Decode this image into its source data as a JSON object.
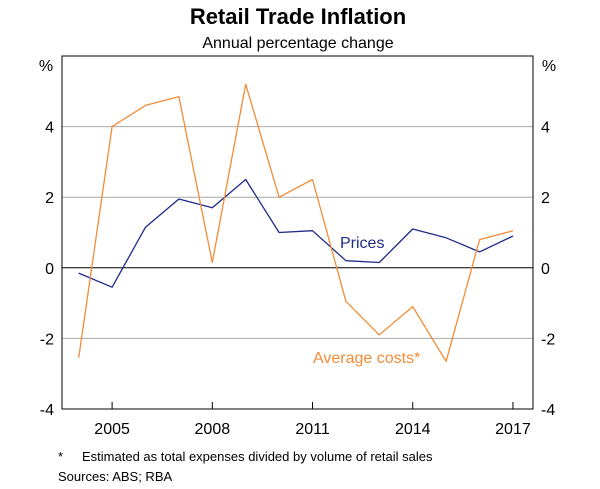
{
  "chart_data": {
    "type": "line",
    "title": "Retail Trade Inflation",
    "subtitle": "Annual percentage change",
    "ylabel_left": "%",
    "ylabel_right": "%",
    "ylim": [
      -4,
      6
    ],
    "yticks": [
      -4,
      -2,
      0,
      2,
      4
    ],
    "xlim": [
      2003.5,
      2017.6
    ],
    "xticks": [
      2005,
      2008,
      2011,
      2014,
      2017
    ],
    "grid": true,
    "x": [
      2004,
      2005,
      2006,
      2007,
      2008,
      2009,
      2010,
      2011,
      2012,
      2013,
      2014,
      2015,
      2016,
      2017
    ],
    "series": [
      {
        "name": "Prices",
        "color": "#1f2a8a",
        "values": [
          -0.15,
          -0.55,
          1.15,
          1.95,
          1.7,
          2.5,
          1.0,
          1.05,
          0.2,
          0.15,
          1.1,
          0.85,
          0.45,
          0.9
        ]
      },
      {
        "name": "Average costs*",
        "color": "#f28c38",
        "values": [
          -2.55,
          4.0,
          4.6,
          4.85,
          0.15,
          5.2,
          2.0,
          2.5,
          -0.95,
          -1.9,
          -1.1,
          -2.65,
          0.8,
          1.05
        ]
      }
    ]
  },
  "footnotes": {
    "note_mark": "*",
    "note_text": "Estimated as total expenses divided by volume of retail sales",
    "sources": "Sources:   ABS; RBA"
  }
}
